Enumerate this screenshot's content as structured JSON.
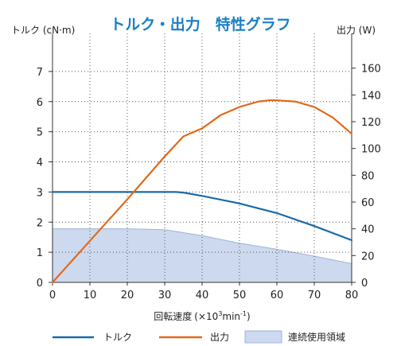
{
  "chart_data": {
    "type": "line",
    "title": "トルク・出力　特性グラフ",
    "xlabel": "回転速度",
    "xunit_prefix": "(×10",
    "xunit_sup1": "3",
    "xunit_mid": "min",
    "xunit_sup2": "-1",
    "xunit_suffix": ")",
    "ylabel_left": "トルク (cN·m)",
    "ylabel_right": "出力 (W)",
    "xlim": [
      0,
      80
    ],
    "ylim_left": [
      0,
      8
    ],
    "ylim_right": [
      0,
      180
    ],
    "x_ticks": [
      0,
      10,
      20,
      30,
      40,
      50,
      60,
      70,
      80
    ],
    "y_ticks_left": [
      0,
      1,
      2,
      3,
      4,
      5,
      6,
      7
    ],
    "y_ticks_right": [
      0,
      20,
      40,
      60,
      80,
      100,
      120,
      140,
      160
    ],
    "grid": true,
    "legend_position": "bottom",
    "series": [
      {
        "name": "トルク",
        "axis": "left",
        "color": "#1a6aaa",
        "x": [
          0,
          10,
          20,
          30,
          33,
          35,
          40,
          50,
          60,
          70,
          80
        ],
        "y": [
          3.0,
          3.0,
          3.0,
          3.0,
          3.0,
          2.98,
          2.87,
          2.62,
          2.3,
          1.87,
          1.4
        ]
      },
      {
        "name": "出力",
        "axis": "right",
        "color": "#e06a1a",
        "x": [
          0,
          10,
          20,
          30,
          35,
          40,
          45,
          50,
          55,
          58,
          60,
          65,
          70,
          75,
          80
        ],
        "y": [
          0,
          31,
          62,
          94,
          109,
          115,
          125,
          131,
          135,
          136,
          136,
          135,
          131,
          123,
          111
        ]
      },
      {
        "name": "連続使用領域",
        "axis": "left",
        "type": "area",
        "color": "#cdd9ee",
        "x": [
          0,
          10,
          20,
          30,
          40,
          50,
          60,
          70,
          80
        ],
        "y": [
          1.78,
          1.78,
          1.78,
          1.75,
          1.55,
          1.3,
          1.1,
          0.87,
          0.62
        ]
      }
    ]
  }
}
